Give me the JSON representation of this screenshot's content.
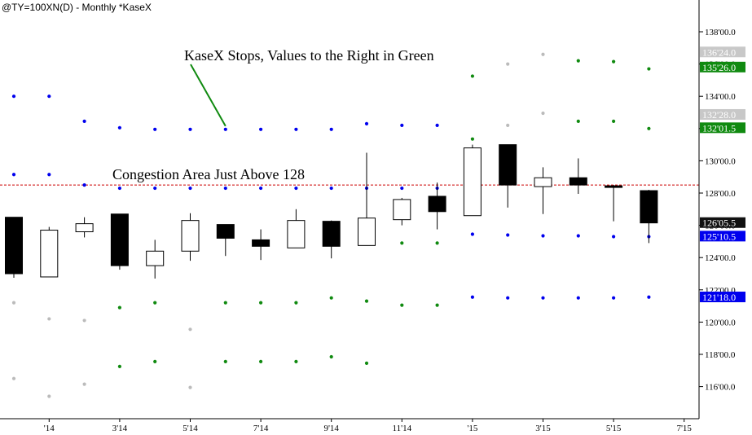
{
  "chart_data": {
    "type": "candlestick",
    "title": "@TY=100XN(D) - Monthly  *KaseX",
    "ylim": [
      114.5,
      139.25
    ],
    "y_ticks": [
      {
        "value": 138,
        "label": "138'00.0"
      },
      {
        "value": 136,
        "label": "136'00.0"
      },
      {
        "value": 134,
        "label": "134'00.0"
      },
      {
        "value": 132,
        "label": "132'00.0"
      },
      {
        "value": 130,
        "label": "130'00.0"
      },
      {
        "value": 128,
        "label": "128'00.0"
      },
      {
        "value": 126,
        "label": "126'00.0"
      },
      {
        "value": 124,
        "label": "124'00.0"
      },
      {
        "value": 122,
        "label": "122'00.0"
      },
      {
        "value": 120,
        "label": "120'00.0"
      },
      {
        "value": 118,
        "label": "118'00.0"
      },
      {
        "value": 116,
        "label": "116'00.0"
      }
    ],
    "x_labels": [
      {
        "index": 1,
        "label": "'14"
      },
      {
        "index": 3,
        "label": "3'14"
      },
      {
        "index": 5,
        "label": "5'14"
      },
      {
        "index": 7,
        "label": "7'14"
      },
      {
        "index": 9,
        "label": "9'14"
      },
      {
        "index": 11,
        "label": "11'14"
      },
      {
        "index": 13,
        "label": "'15"
      },
      {
        "index": 15,
        "label": "3'15"
      },
      {
        "index": 17,
        "label": "5'15"
      },
      {
        "index": 19,
        "label": "7'15"
      }
    ],
    "candles": [
      {
        "index": 0,
        "open": 126.5,
        "high": 126.5,
        "low": 122.75,
        "close": 123.0
      },
      {
        "index": 1,
        "open": 122.8,
        "high": 125.9,
        "low": 122.8,
        "close": 125.7
      },
      {
        "index": 2,
        "open": 125.6,
        "high": 126.5,
        "low": 125.25,
        "close": 126.1
      },
      {
        "index": 3,
        "open": 126.7,
        "high": 126.7,
        "low": 123.25,
        "close": 123.5
      },
      {
        "index": 4,
        "open": 123.5,
        "high": 125.1,
        "low": 122.7,
        "close": 124.4
      },
      {
        "index": 5,
        "open": 124.4,
        "high": 126.75,
        "low": 123.8,
        "close": 126.3
      },
      {
        "index": 6,
        "open": 126.05,
        "high": 126.05,
        "low": 124.1,
        "close": 125.2
      },
      {
        "index": 7,
        "open": 125.1,
        "high": 125.75,
        "low": 123.85,
        "close": 124.7
      },
      {
        "index": 8,
        "open": 124.6,
        "high": 127.0,
        "low": 124.6,
        "close": 126.3
      },
      {
        "index": 9,
        "open": 126.25,
        "high": 126.3,
        "low": 123.95,
        "close": 124.7
      },
      {
        "index": 10,
        "open": 124.75,
        "high": 130.5,
        "low": 124.75,
        "close": 126.45
      },
      {
        "index": 11,
        "open": 126.35,
        "high": 127.7,
        "low": 126.0,
        "close": 127.6
      },
      {
        "index": 12,
        "open": 127.8,
        "high": 128.65,
        "low": 125.75,
        "close": 126.85
      },
      {
        "index": 13,
        "open": 126.6,
        "high": 131.0,
        "low": 126.6,
        "close": 130.8
      },
      {
        "index": 14,
        "open": 131.0,
        "high": 131.0,
        "low": 127.1,
        "close": 128.5
      },
      {
        "index": 15,
        "open": 128.4,
        "high": 129.6,
        "low": 126.7,
        "close": 128.95
      },
      {
        "index": 16,
        "open": 128.95,
        "high": 130.15,
        "low": 127.95,
        "close": 128.5
      },
      {
        "index": 17,
        "open": 128.45,
        "high": 128.5,
        "low": 126.25,
        "close": 128.35
      },
      {
        "index": 18,
        "open": 128.15,
        "high": 128.2,
        "low": 124.9,
        "close": 126.15
      }
    ],
    "stops": [
      {
        "color": "#0000ee",
        "points": [
          [
            0,
            129.15
          ],
          [
            1,
            129.15
          ],
          [
            2,
            128.5
          ],
          [
            3,
            128.3
          ],
          [
            4,
            128.3
          ],
          [
            5,
            128.3
          ],
          [
            6,
            128.3
          ],
          [
            7,
            128.3
          ],
          [
            8,
            128.3
          ],
          [
            9,
            128.3
          ],
          [
            10,
            128.3
          ],
          [
            11,
            128.3
          ],
          [
            12,
            128.3
          ]
        ]
      },
      {
        "color": "#0000ee",
        "points": [
          [
            0,
            134.0
          ],
          [
            1,
            134.0
          ],
          [
            2,
            132.45
          ],
          [
            3,
            132.05
          ],
          [
            4,
            131.95
          ],
          [
            5,
            131.95
          ],
          [
            6,
            131.95
          ],
          [
            7,
            131.95
          ],
          [
            8,
            131.95
          ],
          [
            9,
            131.95
          ],
          [
            10,
            132.3
          ],
          [
            11,
            132.2
          ],
          [
            12,
            132.2
          ]
        ]
      },
      {
        "color": "#0000ee",
        "points": [
          [
            13,
            125.45
          ],
          [
            14,
            125.4
          ],
          [
            15,
            125.35
          ],
          [
            16,
            125.35
          ],
          [
            17,
            125.3
          ],
          [
            18,
            125.3
          ]
        ]
      },
      {
        "color": "#0000ee",
        "points": [
          [
            13,
            121.55
          ],
          [
            14,
            121.5
          ],
          [
            15,
            121.5
          ],
          [
            16,
            121.5
          ],
          [
            17,
            121.5
          ],
          [
            18,
            121.55
          ]
        ]
      },
      {
        "color": "#108a10",
        "points": [
          [
            3,
            120.9
          ],
          [
            4,
            121.2
          ],
          [
            6,
            121.2
          ],
          [
            7,
            121.2
          ],
          [
            8,
            121.2
          ],
          [
            9,
            121.5
          ],
          [
            10,
            121.3
          ],
          [
            11,
            121.05
          ],
          [
            12,
            121.05
          ]
        ]
      },
      {
        "color": "#108a10",
        "points": [
          [
            3,
            117.25
          ],
          [
            4,
            117.55
          ],
          [
            6,
            117.55
          ],
          [
            7,
            117.55
          ],
          [
            8,
            117.55
          ],
          [
            9,
            117.85
          ],
          [
            10,
            117.45
          ]
        ]
      },
      {
        "color": "#108a10",
        "points": [
          [
            11,
            124.9
          ],
          [
            12,
            124.9
          ]
        ]
      },
      {
        "color": "#108a10",
        "points": [
          [
            13,
            135.25
          ],
          [
            16,
            136.2
          ],
          [
            17,
            136.15
          ],
          [
            18,
            135.7
          ]
        ]
      },
      {
        "color": "#108a10",
        "points": [
          [
            13,
            131.35
          ],
          [
            16,
            132.45
          ],
          [
            17,
            132.45
          ],
          [
            18,
            132.0
          ]
        ]
      },
      {
        "color": "#bbbbbb",
        "points": [
          [
            0,
            121.2
          ],
          [
            1,
            120.2
          ],
          [
            2,
            120.1
          ],
          [
            5,
            119.55
          ]
        ]
      },
      {
        "color": "#bbbbbb",
        "points": [
          [
            0,
            116.5
          ],
          [
            1,
            115.4
          ],
          [
            2,
            116.15
          ],
          [
            5,
            115.95
          ]
        ]
      },
      {
        "color": "#bbbbbb",
        "points": [
          [
            14,
            136.0
          ],
          [
            15,
            136.6
          ]
        ]
      },
      {
        "color": "#bbbbbb",
        "points": [
          [
            14,
            132.2
          ],
          [
            15,
            132.95
          ]
        ]
      }
    ],
    "reference_line": {
      "value": 128.5,
      "color": "#cc0000"
    },
    "price_tags": [
      {
        "value": 136.75,
        "label": "136'24.0",
        "color": "#c8c8c8"
      },
      {
        "value": 135.8125,
        "label": "135'26.0",
        "color": "#108a10"
      },
      {
        "value": 132.875,
        "label": "132'28.0",
        "color": "#c8c8c8"
      },
      {
        "value": 132.05,
        "label": "132'01.5",
        "color": "#108a10"
      },
      {
        "value": 126.17,
        "label": "126'05.5",
        "color": "#111111"
      },
      {
        "value": 125.33,
        "label": "125'10.5",
        "color": "#0000ee"
      },
      {
        "value": 121.56,
        "label": "121'18.0",
        "color": "#0000ee"
      }
    ],
    "annotations": [
      {
        "text": "KaseX Stops, Values to the Right in Green",
        "arrow_to_index": 6,
        "arrow_to_value": 131.95
      },
      {
        "text": "Congestion Area Just Above 128"
      }
    ]
  }
}
